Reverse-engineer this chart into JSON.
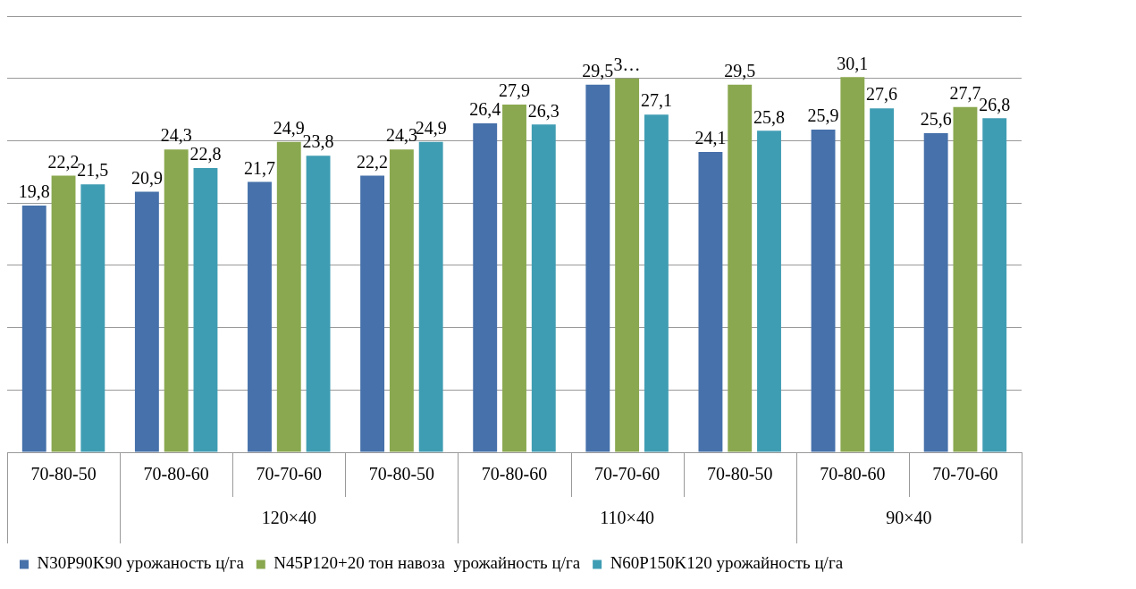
{
  "chart_data": {
    "type": "bar",
    "categories": [
      "70-80-50",
      "70-80-60",
      "70-70-60",
      "70-80-50",
      "70-80-60",
      "70-70-60",
      "70-80-50",
      "70-80-60",
      "70-70-60"
    ],
    "series": [
      {
        "name": "N30P90K90 урожаность ц/га",
        "color": "#4671aa",
        "values": [
          19.8,
          20.9,
          21.7,
          22.2,
          26.4,
          29.5,
          24.1,
          25.9,
          25.6
        ],
        "value_labels": [
          "19,8",
          "20,9",
          "21,7",
          "22,2",
          "26,4",
          "29,5",
          "24,1",
          "25,9",
          "25,6"
        ]
      },
      {
        "name": "N45P120+20 тон навоза  урожайность ц/га",
        "color": "#8aa84f",
        "values": [
          22.2,
          24.3,
          24.9,
          24.3,
          27.9,
          30,
          29.5,
          30.1,
          27.7
        ],
        "value_labels": [
          "22,2",
          "24,3",
          "24,9",
          "24,3",
          "27,9",
          "3…",
          "29,5",
          "30,1",
          "27,7"
        ]
      },
      {
        "name": "N60P150K120 урожайность ц/га",
        "color": "#3f9db3",
        "values": [
          21.5,
          22.8,
          23.8,
          24.9,
          26.3,
          27.1,
          25.8,
          27.6,
          26.8
        ],
        "value_labels": [
          "21,5",
          "22,8",
          "23,8",
          "24,9",
          "26,3",
          "27,1",
          "25,8",
          "27,6",
          "26,8"
        ]
      }
    ],
    "ylim": [
      0,
      35
    ],
    "tick_labels": "x",
    "grid": "y",
    "legend": "bottom",
    "annotations": [
      "120×40",
      "110×40",
      "90×40"
    ]
  }
}
